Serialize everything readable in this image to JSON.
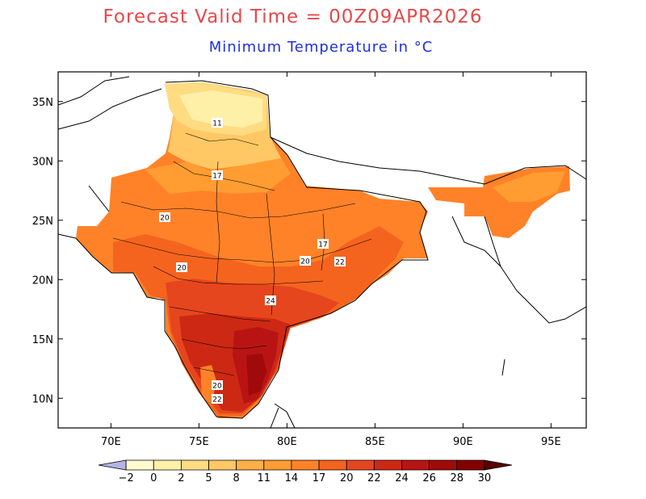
{
  "title": "Forecast Valid Time = 00Z09APR2026",
  "subtitle": "Minimum Temperature in °C",
  "colors": {
    "title": "#e8484a",
    "subtitle": "#1d2fe8",
    "frame": "#000000"
  },
  "map": {
    "lon_range": [
      67,
      97
    ],
    "lat_range": [
      7.5,
      37.5
    ],
    "x_ticks": [
      "70E",
      "75E",
      "80E",
      "85E",
      "90E",
      "95E"
    ],
    "y_ticks": [
      "35N",
      "30N",
      "25N",
      "20N",
      "15N",
      "10N"
    ],
    "contour_labels": [
      "11",
      "17",
      "20",
      "17",
      "20",
      "22",
      "20",
      "24",
      "20",
      "22"
    ]
  },
  "colorbar": {
    "labels": [
      "−2",
      "0",
      "2",
      "5",
      "8",
      "11",
      "14",
      "17",
      "20",
      "22",
      "24",
      "26",
      "28",
      "30"
    ],
    "colors": [
      "#b4b4e6",
      "#fffad2",
      "#fff0a8",
      "#ffdc82",
      "#ffc864",
      "#ffb046",
      "#ff9c32",
      "#ff8228",
      "#f5641e",
      "#e6461e",
      "#cd2814",
      "#b91414",
      "#a00a0a",
      "#820000",
      "#5a0000"
    ]
  }
}
